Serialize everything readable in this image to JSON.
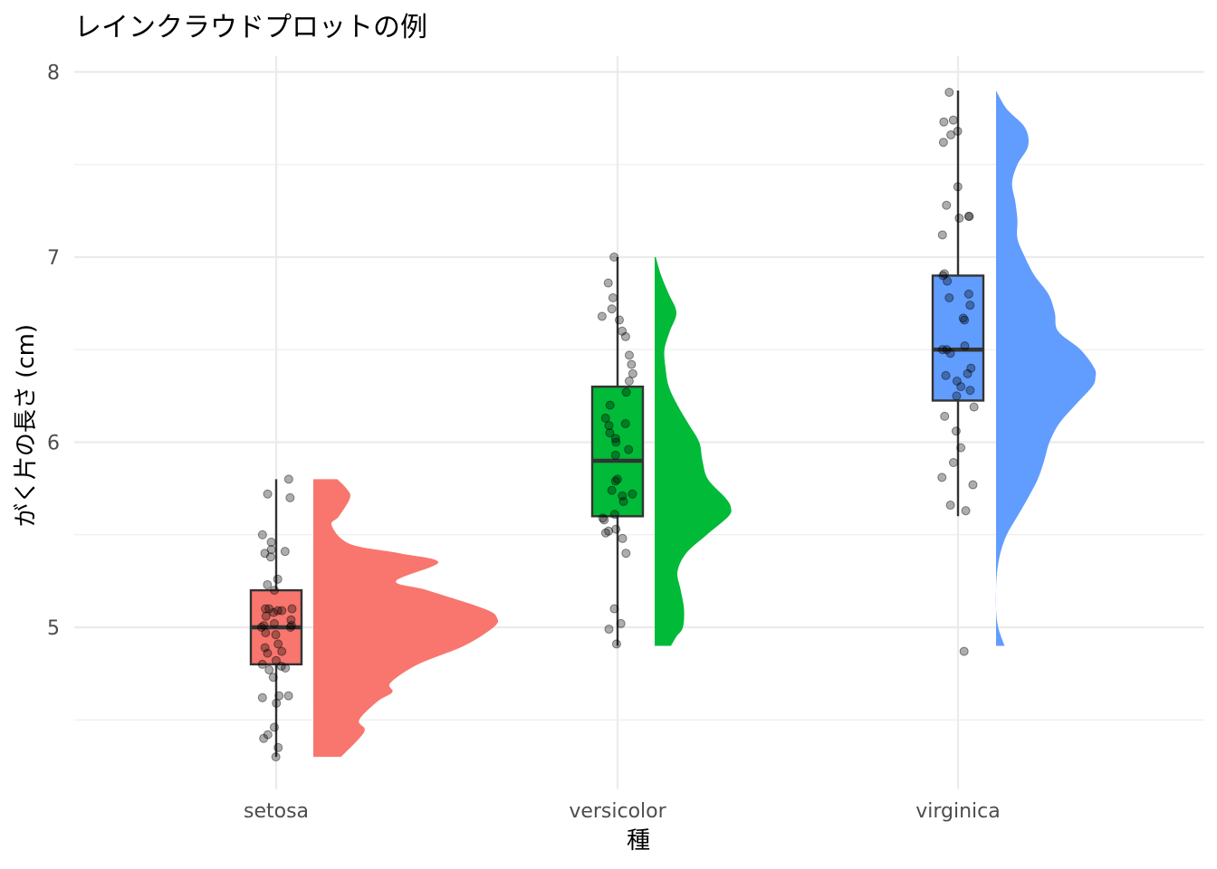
{
  "chart_data": {
    "type": "raincloud",
    "title": "レインクラウドプロットの例",
    "xlabel": "種",
    "ylabel": "がく片の長さ (cm)",
    "ylim": [
      4.3,
      7.9
    ],
    "yticks": [
      5,
      6,
      7,
      8
    ],
    "grid": true,
    "categories": [
      "setosa",
      "versicolor",
      "virginica"
    ],
    "colors": [
      "#F8766D",
      "#00BA38",
      "#619CFF"
    ],
    "box": [
      {
        "min": 4.3,
        "q1": 4.8,
        "median": 5.0,
        "q3": 5.2,
        "max": 5.8
      },
      {
        "min": 4.9,
        "q1": 5.6,
        "median": 5.9,
        "q3": 6.3,
        "max": 7.0
      },
      {
        "min": 5.6,
        "q1": 6.225,
        "median": 6.5,
        "q3": 6.9,
        "max": 7.9
      }
    ],
    "outliers": [
      [],
      [],
      [
        4.9
      ]
    ],
    "density": [
      {
        "y": [
          4.3,
          4.4,
          4.45,
          4.5,
          4.6,
          4.65,
          4.7,
          4.8,
          4.9,
          5.0,
          5.05,
          5.1,
          5.2,
          5.25,
          5.35,
          5.4,
          5.45,
          5.55,
          5.6,
          5.7,
          5.75,
          5.8
        ],
        "d": [
          0.15,
          0.25,
          0.28,
          0.25,
          0.35,
          0.43,
          0.42,
          0.57,
          0.82,
          0.98,
          1.0,
          0.93,
          0.62,
          0.45,
          0.68,
          0.47,
          0.2,
          0.1,
          0.14,
          0.2,
          0.18,
          0.13
        ]
      },
      {
        "y": [
          4.9,
          4.95,
          5.0,
          5.1,
          5.2,
          5.3,
          5.4,
          5.5,
          5.6,
          5.65,
          5.7,
          5.8,
          5.9,
          6.0,
          6.1,
          6.2,
          6.3,
          6.4,
          6.5,
          6.6,
          6.7,
          6.8,
          6.9,
          7.0
        ],
        "d": [
          0.15,
          0.2,
          0.26,
          0.27,
          0.24,
          0.21,
          0.29,
          0.48,
          0.68,
          0.7,
          0.65,
          0.49,
          0.44,
          0.41,
          0.31,
          0.21,
          0.13,
          0.1,
          0.09,
          0.14,
          0.2,
          0.13,
          0.06,
          0.01
        ]
      },
      {
        "y": [
          4.9,
          5.0,
          5.1,
          5.2,
          5.3,
          5.4,
          5.5,
          5.6,
          5.7,
          5.8,
          5.9,
          6.0,
          6.1,
          6.2,
          6.3,
          6.35,
          6.4,
          6.5,
          6.6,
          6.7,
          6.8,
          6.9,
          7.0,
          7.1,
          7.2,
          7.3,
          7.4,
          7.5,
          7.6,
          7.7,
          7.8,
          7.9
        ],
        "d": [
          0.08,
          0.02,
          0.0,
          0.0,
          0.01,
          0.04,
          0.1,
          0.2,
          0.3,
          0.39,
          0.45,
          0.5,
          0.59,
          0.74,
          0.9,
          0.93,
          0.92,
          0.79,
          0.58,
          0.55,
          0.49,
          0.36,
          0.27,
          0.2,
          0.2,
          0.18,
          0.15,
          0.2,
          0.3,
          0.27,
          0.1,
          0.0
        ]
      }
    ],
    "points": [
      [
        4.3,
        4.35,
        4.4,
        4.42,
        4.46,
        4.59,
        4.62,
        4.63,
        4.63,
        4.73,
        4.77,
        4.78,
        4.79,
        4.8,
        4.82,
        4.86,
        4.87,
        4.89,
        4.91,
        4.96,
        4.97,
        5.0,
        5.0,
        5.01,
        5.01,
        5.02,
        5.04,
        5.06,
        5.08,
        5.09,
        5.09,
        5.1,
        5.1,
        5.1,
        5.2,
        5.23,
        5.26,
        5.38,
        5.4,
        5.41,
        5.42,
        5.46,
        5.5,
        5.7,
        5.72,
        5.8
      ],
      [
        4.91,
        4.99,
        5.02,
        5.1,
        5.4,
        5.48,
        5.51,
        5.52,
        5.53,
        5.58,
        5.59,
        5.61,
        5.68,
        5.71,
        5.72,
        5.74,
        5.79,
        5.8,
        5.93,
        5.96,
        6.0,
        6.02,
        6.05,
        6.09,
        6.1,
        6.13,
        6.2,
        6.27,
        6.33,
        6.37,
        6.42,
        6.47,
        6.57,
        6.6,
        6.66,
        6.68,
        6.72,
        6.78,
        6.86,
        7.0
      ],
      [
        4.87,
        5.63,
        5.66,
        5.77,
        5.81,
        5.89,
        5.97,
        6.06,
        6.14,
        6.19,
        6.25,
        6.28,
        6.3,
        6.33,
        6.36,
        6.37,
        6.4,
        6.48,
        6.5,
        6.5,
        6.52,
        6.66,
        6.67,
        6.74,
        6.78,
        6.8,
        6.87,
        6.9,
        6.91,
        7.12,
        7.21,
        7.22,
        7.22,
        7.28,
        7.38,
        7.62,
        7.66,
        7.68,
        7.73,
        7.74,
        7.89
      ]
    ]
  }
}
